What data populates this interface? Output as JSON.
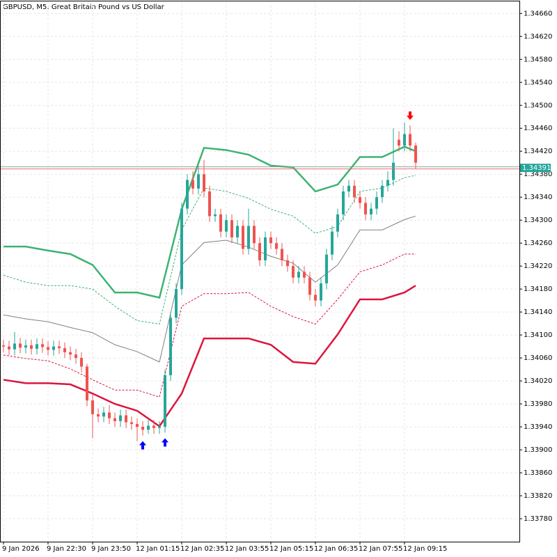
{
  "chart_data": {
    "type": "candlestick",
    "title": "GBPUSD, M5:  Great Britain Pound vs US Dollar",
    "ylim": [
      1.3374,
      1.34681
    ],
    "yticks": [
      {
        "value": 1.3378,
        "label": "1.33780"
      },
      {
        "value": 1.3382,
        "label": "1.33820"
      },
      {
        "value": 1.3386,
        "label": "1.33860"
      },
      {
        "value": 1.339,
        "label": "1.33900"
      },
      {
        "value": 1.3394,
        "label": "1.33940"
      },
      {
        "value": 1.3398,
        "label": "1.33980"
      },
      {
        "value": 1.3402,
        "label": "1.34020"
      },
      {
        "value": 1.3406,
        "label": "1.34060"
      },
      {
        "value": 1.341,
        "label": "1.34100"
      },
      {
        "value": 1.3414,
        "label": "1.34140"
      },
      {
        "value": 1.3418,
        "label": "1.34180"
      },
      {
        "value": 1.3422,
        "label": "1.34220"
      },
      {
        "value": 1.3426,
        "label": "1.34260"
      },
      {
        "value": 1.343,
        "label": "1.34300"
      },
      {
        "value": 1.3434,
        "label": "1.34340"
      },
      {
        "value": 1.3438,
        "label": "1.34380"
      },
      {
        "value": 1.3442,
        "label": "1.34420"
      },
      {
        "value": 1.3446,
        "label": "1.34460"
      },
      {
        "value": 1.345,
        "label": "1.34500"
      },
      {
        "value": 1.3454,
        "label": "1.34540"
      },
      {
        "value": 1.3458,
        "label": "1.34580"
      },
      {
        "value": 1.3462,
        "label": "1.34620"
      },
      {
        "value": 1.3466,
        "label": "1.34660"
      }
    ],
    "xlim": [
      -0.5,
      92.625
    ],
    "xticks": [
      {
        "value": 0,
        "label": "9 Jan 2026"
      },
      {
        "value": 8,
        "label": "9 Jan 22:30"
      },
      {
        "value": 16,
        "label": "9 Jan 23:50"
      },
      {
        "value": 24,
        "label": "12 Jan 01:15"
      },
      {
        "value": 32,
        "label": "12 Jan 02:35"
      },
      {
        "value": 40,
        "label": "12 Jan 03:55"
      },
      {
        "value": 48,
        "label": "12 Jan 05:15"
      },
      {
        "value": 56,
        "label": "12 Jan 06:35"
      },
      {
        "value": 64,
        "label": "12 Jan 07:55"
      },
      {
        "value": 72,
        "label": "12 Jan 09:15"
      }
    ],
    "grid": true,
    "up_color": "#26a69a",
    "down_color": "#ef5350",
    "open": [
      1.34082,
      1.3408,
      1.34075,
      1.34085,
      1.34078,
      1.34082,
      1.34076,
      1.34084,
      1.34079,
      1.34074,
      1.3408,
      1.34077,
      1.3407,
      1.34066,
      1.3406,
      1.34045,
      1.33986,
      1.33962,
      1.33958,
      1.33965,
      1.33955,
      1.3395,
      1.3396,
      1.33948,
      1.33945,
      1.3394,
      1.33935,
      1.33942,
      1.33938,
      1.3394,
      1.3403,
      1.3413,
      1.3418,
      1.3432,
      1.3437,
      1.34355,
      1.3438,
      1.3435,
      1.34307,
      1.3431,
      1.3428,
      1.343,
      1.3427,
      1.3429,
      1.3425,
      1.3429,
      1.3426,
      1.3423,
      1.3427,
      1.3426,
      1.3425,
      1.3423,
      1.3422,
      1.342,
      1.3421,
      1.342,
      1.3417,
      1.3416,
      1.3419,
      1.3424,
      1.3428,
      1.3431,
      1.3435,
      1.3436,
      1.3434,
      1.3433,
      1.3431,
      1.3432,
      1.3434,
      1.3436,
      1.3437,
      1.3444,
      1.3443,
      1.3445,
      1.3443
    ],
    "high": [
      1.34092,
      1.3409,
      1.34105,
      1.34095,
      1.34092,
      1.34092,
      1.34094,
      1.34094,
      1.34089,
      1.3409,
      1.3409,
      1.34087,
      1.3408,
      1.34076,
      1.3407,
      1.3405,
      1.33996,
      1.33972,
      1.33975,
      1.33978,
      1.33965,
      1.3397,
      1.3397,
      1.33958,
      1.33955,
      1.3395,
      1.33952,
      1.33952,
      1.3395,
      1.3404,
      1.3414,
      1.3419,
      1.3433,
      1.3438,
      1.34385,
      1.34395,
      1.34405,
      1.3436,
      1.3432,
      1.3432,
      1.3431,
      1.3431,
      1.343,
      1.343,
      1.3432,
      1.343,
      1.3427,
      1.3428,
      1.3428,
      1.3427,
      1.3426,
      1.3424,
      1.3423,
      1.3422,
      1.3422,
      1.3421,
      1.3418,
      1.342,
      1.3425,
      1.3429,
      1.3432,
      1.3436,
      1.3437,
      1.3437,
      1.3435,
      1.3434,
      1.3433,
      1.3435,
      1.3437,
      1.34385,
      1.3446,
      1.34455,
      1.3447,
      1.34465,
      1.34435
    ],
    "low": [
      1.3407,
      1.34065,
      1.34065,
      1.34068,
      1.34068,
      1.34066,
      1.34066,
      1.34069,
      1.34064,
      1.34064,
      1.34067,
      1.3406,
      1.34056,
      1.3405,
      1.34035,
      1.33976,
      1.3392,
      1.33948,
      1.33948,
      1.33945,
      1.3394,
      1.3394,
      1.33938,
      1.33935,
      1.33915,
      1.33925,
      1.33928,
      1.33928,
      1.33928,
      1.3393,
      1.3402,
      1.3412,
      1.3417,
      1.3431,
      1.34345,
      1.34345,
      1.3434,
      1.34297,
      1.34297,
      1.3427,
      1.3427,
      1.3426,
      1.3426,
      1.3424,
      1.3424,
      1.3425,
      1.3422,
      1.3422,
      1.3425,
      1.3424,
      1.3422,
      1.3421,
      1.3419,
      1.3419,
      1.3419,
      1.3416,
      1.3415,
      1.3415,
      1.3418,
      1.3423,
      1.3427,
      1.343,
      1.3434,
      1.3433,
      1.3432,
      1.343,
      1.343,
      1.3431,
      1.3433,
      1.3435,
      1.3436,
      1.3442,
      1.3442,
      1.3442,
      1.3439
    ],
    "close": [
      1.3408,
      1.34075,
      1.34085,
      1.34078,
      1.34082,
      1.34076,
      1.34084,
      1.34079,
      1.34074,
      1.3408,
      1.34077,
      1.3407,
      1.34066,
      1.3406,
      1.34045,
      1.33986,
      1.33962,
      1.33958,
      1.33965,
      1.33955,
      1.3395,
      1.3396,
      1.33948,
      1.33945,
      1.3394,
      1.33935,
      1.33942,
      1.33938,
      1.3394,
      1.3403,
      1.3413,
      1.3418,
      1.3432,
      1.3437,
      1.34355,
      1.3438,
      1.3435,
      1.34307,
      1.3431,
      1.3428,
      1.343,
      1.3427,
      1.3429,
      1.3425,
      1.3429,
      1.3426,
      1.3423,
      1.3427,
      1.3426,
      1.3425,
      1.3423,
      1.3422,
      1.342,
      1.3421,
      1.342,
      1.3417,
      1.3416,
      1.3419,
      1.3424,
      1.3428,
      1.3431,
      1.3435,
      1.3436,
      1.3434,
      1.3433,
      1.3431,
      1.3432,
      1.3434,
      1.3436,
      1.3437,
      1.344,
      1.3443,
      1.3445,
      1.3443,
      1.344
    ],
    "band_x": [
      0,
      4,
      8,
      12,
      16,
      20,
      24,
      28,
      32,
      36,
      40,
      44,
      48,
      52,
      56,
      60,
      64,
      68,
      72,
      74
    ],
    "series": [
      {
        "color": "#3cb371",
        "width": 2.5,
        "dash": false,
        "values": [
          1.34254,
          1.34254,
          1.34247,
          1.34241,
          1.34222,
          1.34174,
          1.34174,
          1.34165,
          1.34319,
          1.34426,
          1.34422,
          1.34414,
          1.34395,
          1.34392,
          1.3435,
          1.34362,
          1.3441,
          1.3441,
          1.34428,
          1.3442
        ]
      },
      {
        "color": "#3cb371",
        "width": 1,
        "dash": true,
        "values": [
          1.34204,
          1.34192,
          1.34186,
          1.34186,
          1.3418,
          1.3415,
          1.34125,
          1.34119,
          1.34283,
          1.34356,
          1.3435,
          1.34338,
          1.34319,
          1.34307,
          1.34277,
          1.34289,
          1.3435,
          1.34356,
          1.34374,
          1.34378
        ]
      },
      {
        "color": "#808080",
        "width": 1,
        "dash": false,
        "values": [
          1.34135,
          1.34128,
          1.34123,
          1.34113,
          1.34104,
          1.34083,
          1.34071,
          1.34053,
          1.34222,
          1.34261,
          1.34265,
          1.34253,
          1.34237,
          1.34225,
          1.34192,
          1.34222,
          1.34283,
          1.34283,
          1.34301,
          1.34307
        ]
      },
      {
        "color": "#dc143c",
        "width": 1,
        "dash": true,
        "values": [
          1.34065,
          1.34059,
          1.34055,
          1.34041,
          1.34022,
          1.34004,
          1.34004,
          1.33992,
          1.3415,
          1.34172,
          1.34172,
          1.34174,
          1.3415,
          1.34132,
          1.34119,
          1.34162,
          1.3421,
          1.34222,
          1.34241,
          1.34241
        ]
      },
      {
        "color": "#dc143c",
        "width": 2.5,
        "dash": false,
        "values": [
          1.34022,
          1.34016,
          1.34016,
          1.34014,
          1.33998,
          1.3398,
          1.33968,
          1.33941,
          1.33998,
          1.34094,
          1.34094,
          1.34094,
          1.34083,
          1.34053,
          1.3405,
          1.34101,
          1.34162,
          1.34162,
          1.34174,
          1.34186
        ]
      }
    ],
    "buy_signals": [
      25,
      29
    ],
    "sell_signals": [
      73
    ],
    "last_price": {
      "value": 1.34391,
      "label": "1.34391"
    }
  }
}
